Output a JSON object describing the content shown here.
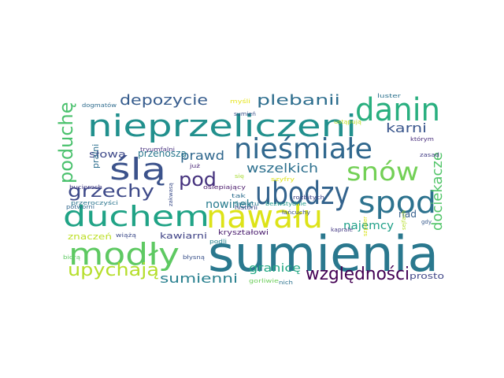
{
  "words": [
    {
      "text": "sumienia",
      "color": "#2a788e"
    },
    {
      "text": "nawału",
      "color": "#dde318"
    },
    {
      "text": "ubodzy",
      "color": "#33638d"
    },
    {
      "text": "nieprzeliczeni",
      "color": "#21908d"
    },
    {
      "text": "duchem",
      "color": "#20a386"
    },
    {
      "text": "modły",
      "color": "#5ec962"
    },
    {
      "text": "danin",
      "color": "#29af7f"
    },
    {
      "text": "nieśmiałe",
      "color": "#31688e"
    },
    {
      "text": "spod",
      "color": "#2c728e"
    },
    {
      "text": "snów",
      "color": "#73d056"
    },
    {
      "text": "ślą",
      "color": "#3b528b"
    },
    {
      "text": "grzechy",
      "color": "#3e4a89"
    },
    {
      "text": "upychają",
      "color": "#b5de2b"
    },
    {
      "text": "względności",
      "color": "#440154"
    },
    {
      "text": "pod",
      "color": "#46337e"
    },
    {
      "text": "poduchę",
      "color": "#4ac16d"
    },
    {
      "text": "depozycie",
      "color": "#365c8d"
    },
    {
      "text": "plebanii",
      "color": "#2e6e8e"
    },
    {
      "text": "dociekacze",
      "color": "#52c569"
    },
    {
      "text": "prawd",
      "color": "#31688e"
    },
    {
      "text": "wszelkich",
      "color": "#2d708e"
    },
    {
      "text": "karni",
      "color": "#39568c"
    },
    {
      "text": "nowinek",
      "color": "#287c8e"
    },
    {
      "text": "najemcy",
      "color": "#1fa088"
    },
    {
      "text": "sumienni",
      "color": "#277f8e"
    },
    {
      "text": "granicę",
      "color": "#22a884"
    },
    {
      "text": "słowa",
      "color": "#3e4989"
    },
    {
      "text": "przenoszą",
      "color": "#2a788e"
    },
    {
      "text": "nad",
      "color": "#355f8d"
    },
    {
      "text": "kawiarni",
      "color": "#414487"
    },
    {
      "text": "znaczeń",
      "color": "#bddf26"
    },
    {
      "text": "prosto",
      "color": "#404688"
    },
    {
      "text": "pralni",
      "color": "#2e6f8e"
    },
    {
      "text": "kryształowi",
      "color": "#481a6c"
    },
    {
      "text": "tryumfalni",
      "color": "#46307e"
    },
    {
      "text": "historii",
      "color": "#3f4788"
    },
    {
      "text": "oślepiający",
      "color": "#481769"
    },
    {
      "text": "łańcuchy",
      "color": "#3b528b"
    },
    {
      "text": "bezwstydnie",
      "color": "#1f9a8a"
    },
    {
      "text": "dogmatów",
      "color": "#2f6c8e"
    },
    {
      "text": "myśli",
      "color": "#e5e419"
    },
    {
      "text": "ustąpują",
      "color": "#bddf26"
    },
    {
      "text": "luster",
      "color": "#2c728e"
    },
    {
      "text": "którym",
      "color": "#472c7a"
    },
    {
      "text": "zasad",
      "color": "#433e85"
    },
    {
      "text": "gdy",
      "color": "#375a8c"
    },
    {
      "text": "sejfach",
      "color": "#b5de2b"
    },
    {
      "text": "kaprale",
      "color": "#443983"
    },
    {
      "text": "szpaler",
      "color": "#d8e219"
    },
    {
      "text": "przeroczyści",
      "color": "#2b758e"
    },
    {
      "text": "bucioroch",
      "color": "#433d84"
    },
    {
      "text": "potworni",
      "color": "#31688e"
    },
    {
      "text": "zakwasą",
      "color": "#3d4e8a"
    },
    {
      "text": "wiążą",
      "color": "#3e4c8a"
    },
    {
      "text": "biorą",
      "color": "#5ec962"
    },
    {
      "text": "błysną",
      "color": "#3b528b"
    },
    {
      "text": "już",
      "color": "#482475"
    },
    {
      "text": "się",
      "color": "#a8db34"
    },
    {
      "text": "tak",
      "color": "#2e6e8e"
    },
    {
      "text": "szyfry",
      "color": "#dde318"
    },
    {
      "text": "światu",
      "color": "#2a788e"
    },
    {
      "text": "podli",
      "color": "#26828e"
    },
    {
      "text": "rozbitych",
      "color": "#414487"
    },
    {
      "text": "gorliwie",
      "color": "#6ccd5a"
    },
    {
      "text": "nich",
      "color": "#2c728e"
    },
    {
      "text": "sumień",
      "color": "#3b528b"
    }
  ]
}
